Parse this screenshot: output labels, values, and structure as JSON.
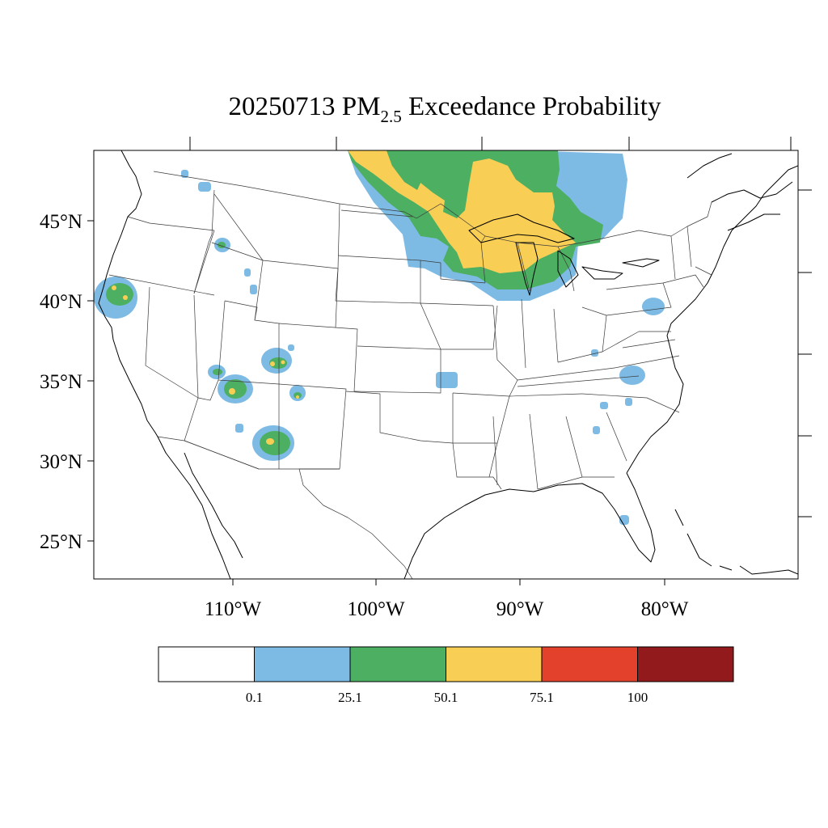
{
  "map": {
    "title_prefix": "20250713 PM",
    "title_subscript": "2.5",
    "title_suffix": " Exceedance Probability",
    "lat_labels": [
      "45°N",
      "40°N",
      "35°N",
      "30°N",
      "25°N"
    ],
    "lon_labels": [
      "110°W",
      "100°W",
      "90°W",
      "80°W"
    ],
    "colorbar": {
      "colors": [
        "#ffffff",
        "#7dbbe5",
        "#4caf62",
        "#f9ce55",
        "#e3412b",
        "#931a1c"
      ],
      "labels": [
        "0.1",
        "25.1",
        "50.1",
        "75.1",
        "100"
      ]
    },
    "probability_colors": {
      "p0_1": "#7dbbe5",
      "p25_1": "#4caf62",
      "p50_1": "#f9ce55"
    }
  }
}
